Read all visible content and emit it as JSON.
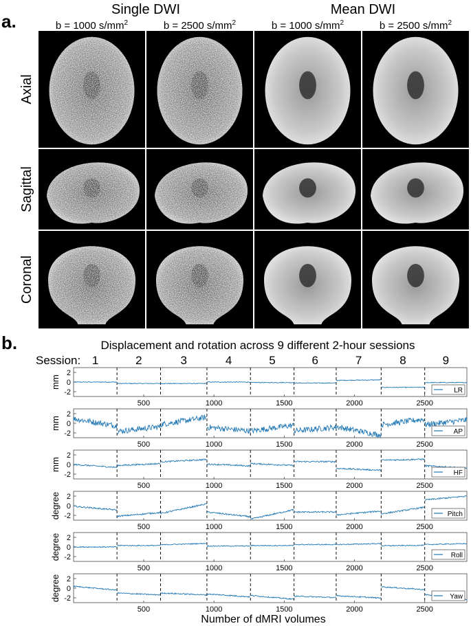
{
  "panel_a": {
    "label": "a.",
    "group_headers": [
      "Single DWI",
      "Mean DWI"
    ],
    "col_headers": [
      {
        "prefix": "b = 1000 s/mm",
        "sup": "2"
      },
      {
        "prefix": "b = 2500 s/mm",
        "sup": "2"
      },
      {
        "prefix": "b = 1000 s/mm",
        "sup": "2"
      },
      {
        "prefix": "b = 2500 s/mm",
        "sup": "2"
      }
    ],
    "row_labels": [
      "Axial",
      "Sagittal",
      "Coronal"
    ]
  },
  "panel_b": {
    "label": "b.",
    "title": "Displacement and rotation across 9 different 2-hour sessions",
    "session_label": "Session:",
    "sessions": [
      "1",
      "2",
      "3",
      "4",
      "5",
      "6",
      "7",
      "8",
      "9"
    ],
    "xlabel": "Number of dMRI volumes",
    "line_color": "#1f77b4"
  },
  "chart_data": {
    "type": "line",
    "x_range": [
      1,
      2800
    ],
    "x_ticks": [
      500,
      1000,
      1500,
      2000,
      2500
    ],
    "session_boundaries": [
      310,
      620,
      950,
      1260,
      1570,
      1870,
      2190,
      2500
    ],
    "subplots": [
      {
        "legend": "LR",
        "ylabel": "mm",
        "ylim": [
          -3,
          3
        ],
        "y_ticks": [
          2,
          0,
          -2
        ],
        "session_means": [
          0.0,
          -0.3,
          -0.3,
          0.0,
          -0.1,
          -0.2,
          0.4,
          -1.1,
          -0.1
        ],
        "session_slopes": [
          0,
          0,
          0,
          0,
          0,
          0,
          0.1,
          0,
          0
        ],
        "noise": 0.08
      },
      {
        "legend": "AP",
        "ylabel": "mm",
        "ylim": [
          -3,
          3
        ],
        "y_ticks": [
          2,
          0,
          -2
        ],
        "session_means": [
          0.2,
          -1.2,
          0.5,
          -1.2,
          -1.0,
          -1.2,
          -1.6,
          0.3,
          0.2
        ],
        "session_slopes": [
          -1.5,
          1.0,
          1.5,
          -0.8,
          1.2,
          0.8,
          -1.8,
          1.2,
          1.0
        ],
        "noise": 0.6
      },
      {
        "legend": "HF",
        "ylabel": "mm",
        "ylim": [
          -3,
          3
        ],
        "y_ticks": [
          2,
          0,
          -2
        ],
        "session_means": [
          -0.3,
          0.0,
          0.8,
          -0.1,
          0.0,
          0.6,
          -1.0,
          1.0,
          -0.5
        ],
        "session_slopes": [
          -0.6,
          0.4,
          0.5,
          -0.4,
          -0.4,
          0.0,
          -0.4,
          0.2,
          -0.5
        ],
        "noise": 0.15
      },
      {
        "legend": "Pitch",
        "ylabel": "degree",
        "ylim": [
          -3,
          3
        ],
        "y_ticks": [
          2,
          0,
          -2
        ],
        "session_means": [
          -0.5,
          -1.8,
          -0.6,
          -1.8,
          -1.8,
          -1.3,
          -1.5,
          -1.0,
          1.6
        ],
        "session_slopes": [
          -0.8,
          0.8,
          2.0,
          -1.0,
          2.0,
          0.0,
          0.8,
          1.4,
          0.8
        ],
        "noise": 0.15
      },
      {
        "legend": "Roll",
        "ylabel": "degree",
        "ylim": [
          -3,
          3
        ],
        "y_ticks": [
          2,
          0,
          -2
        ],
        "session_means": [
          0.0,
          0.3,
          0.6,
          0.2,
          0.3,
          0.5,
          0.6,
          0.3,
          0.6
        ],
        "session_slopes": [
          0,
          0,
          0.3,
          0,
          0,
          0,
          0.2,
          0.1,
          0.2
        ],
        "noise": 0.1
      },
      {
        "legend": "Yaw",
        "ylabel": "degree",
        "ylim": [
          -3,
          3
        ],
        "y_ticks": [
          2,
          0,
          -2
        ],
        "session_means": [
          0.0,
          -1.2,
          -1.2,
          -1.5,
          -1.9,
          -1.8,
          -1.8,
          0.0,
          -1.8
        ],
        "session_slopes": [
          -0.8,
          -0.4,
          -0.4,
          -0.6,
          -0.8,
          -0.3,
          -0.5,
          -0.6,
          -1.0
        ],
        "noise": 0.12
      }
    ]
  }
}
